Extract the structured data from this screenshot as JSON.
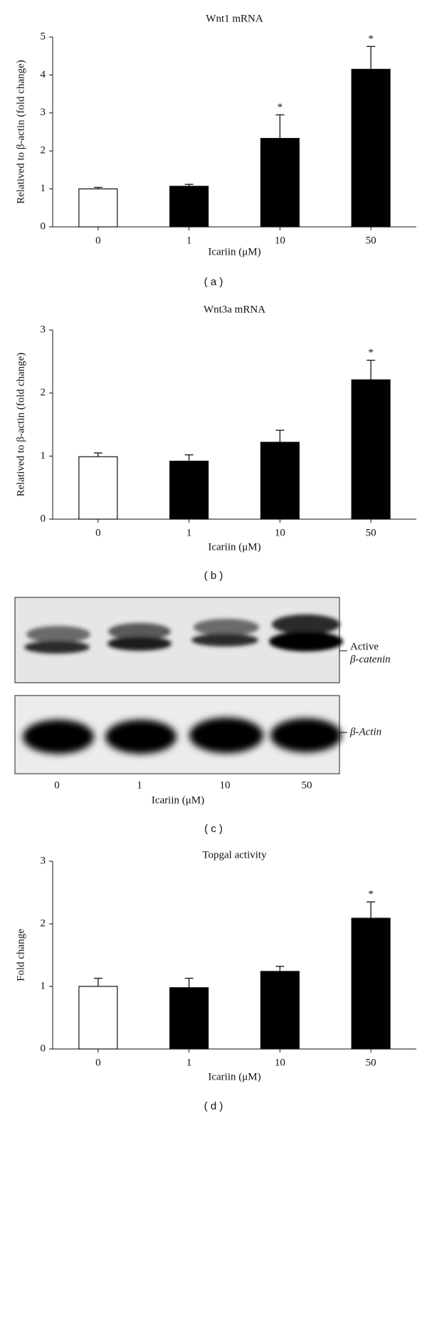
{
  "chart_data": [
    {
      "type": "bar",
      "title": "Wnt1 mRNA",
      "y_label": "Relatived to β-actin (fold change)",
      "x_label": "Icariin (μM)",
      "categories": [
        "0",
        "1",
        "10",
        "50"
      ],
      "values": [
        1.0,
        1.07,
        2.33,
        4.15
      ],
      "errors": [
        0.04,
        0.05,
        0.62,
        0.6
      ],
      "colors": [
        "#ffffff",
        "#000000",
        "#000000",
        "#000000"
      ],
      "significance": [
        null,
        null,
        "*",
        "*"
      ],
      "ylim": [
        0,
        5
      ],
      "yticks": [
        0,
        1,
        2,
        3,
        4,
        5
      ],
      "panel_label": "( a )"
    },
    {
      "type": "bar",
      "title": "Wnt3a mRNA",
      "y_label": "Relatived to β-actin (fold change)",
      "x_label": "Icariin (μM)",
      "categories": [
        "0",
        "1",
        "10",
        "50"
      ],
      "values": [
        0.99,
        0.92,
        1.22,
        2.21
      ],
      "errors": [
        0.06,
        0.1,
        0.19,
        0.31
      ],
      "colors": [
        "#ffffff",
        "#000000",
        "#000000",
        "#000000"
      ],
      "significance": [
        null,
        null,
        null,
        "*"
      ],
      "ylim": [
        0,
        3
      ],
      "yticks": [
        0,
        1,
        2,
        3
      ],
      "panel_label": "( b )"
    },
    {
      "type": "bar",
      "title": "Topgal activity",
      "y_label": "Fold change",
      "x_label": "Icariin (μM)",
      "categories": [
        "0",
        "1",
        "10",
        "50"
      ],
      "values": [
        1.0,
        0.98,
        1.24,
        2.09
      ],
      "errors": [
        0.13,
        0.15,
        0.08,
        0.26
      ],
      "colors": [
        "#ffffff",
        "#000000",
        "#000000",
        "#000000"
      ],
      "significance": [
        null,
        null,
        null,
        "*"
      ],
      "ylim": [
        0,
        3
      ],
      "yticks": [
        0,
        1,
        2,
        3
      ],
      "panel_label": "( d )"
    }
  ],
  "blot": {
    "band_labels": [
      "Active",
      "β-catenin",
      "β-Actin"
    ],
    "categories": [
      "0",
      "1",
      "10",
      "50"
    ],
    "x_label": "Icariin (μM)",
    "panel_label": "( c )"
  }
}
